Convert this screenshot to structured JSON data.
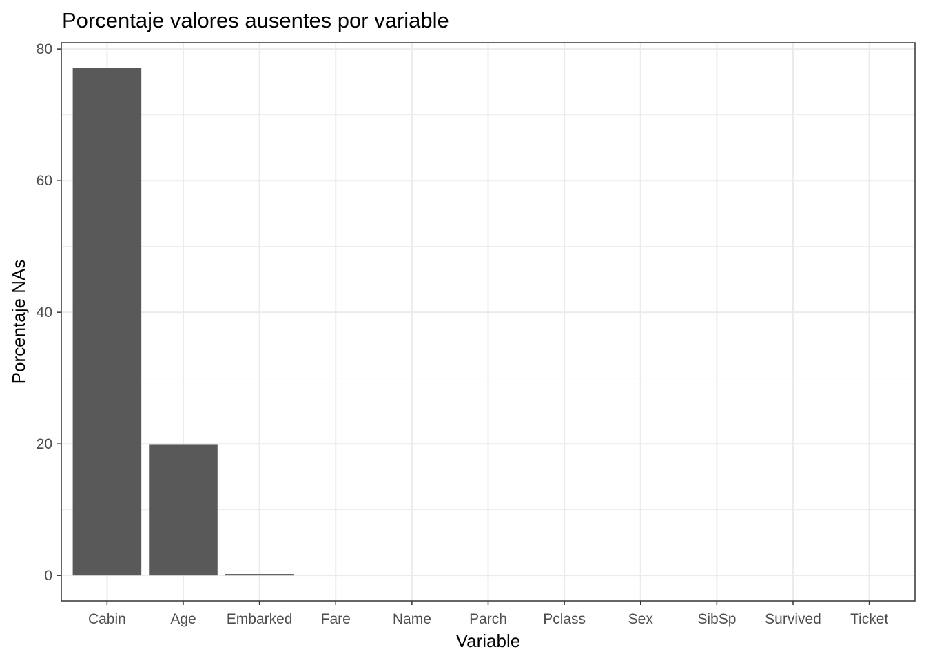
{
  "chart_data": {
    "type": "bar",
    "title": "Porcentaje valores ausentes por variable",
    "xlabel": "Variable",
    "ylabel": "Porcentaje NAs",
    "categories": [
      "Cabin",
      "Age",
      "Embarked",
      "Fare",
      "Name",
      "Parch",
      "Pclass",
      "Sex",
      "SibSp",
      "Survived",
      "Ticket"
    ],
    "values": [
      77.1,
      19.87,
      0.22,
      0,
      0,
      0,
      0,
      0,
      0,
      0,
      0
    ],
    "ylim": [
      -3.855,
      80.955
    ],
    "yticks": [
      0,
      20,
      40,
      60,
      80
    ],
    "grid": true,
    "legend": "none",
    "colors": {
      "bar": "#595959",
      "grid": "#ebebeb",
      "panel_border": "#333333",
      "tick_label": "#4d4d4d"
    }
  }
}
